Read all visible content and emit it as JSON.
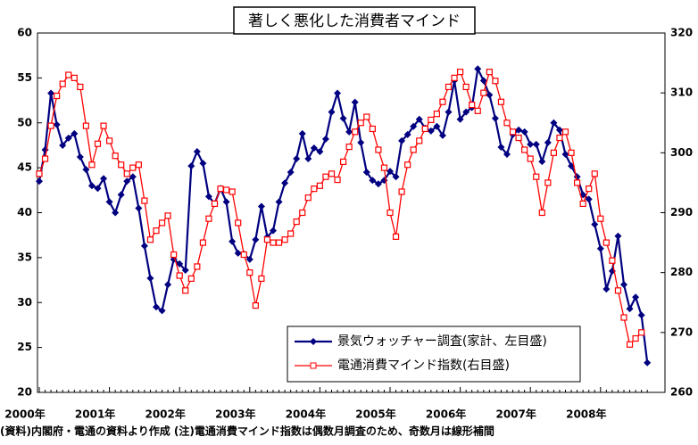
{
  "chart_data": {
    "type": "line",
    "title": "著しく悪化した消費者マインド",
    "note": "(資料)内閣府・電通の資料より作成 (注)電通消費マインド指数は偶数月調査のため、奇数月は線形補間",
    "categories": [
      "2000年",
      null,
      null,
      null,
      null,
      null,
      null,
      null,
      null,
      null,
      null,
      null,
      "2001年",
      null,
      null,
      null,
      null,
      null,
      null,
      null,
      null,
      null,
      null,
      null,
      "2002年",
      null,
      null,
      null,
      null,
      null,
      null,
      null,
      null,
      null,
      null,
      null,
      "2003年",
      null,
      null,
      null,
      null,
      null,
      null,
      null,
      null,
      null,
      null,
      null,
      "2004年",
      null,
      null,
      null,
      null,
      null,
      null,
      null,
      null,
      null,
      null,
      null,
      "2005年",
      null,
      null,
      null,
      null,
      null,
      null,
      null,
      null,
      null,
      null,
      null,
      "2006年",
      null,
      null,
      null,
      null,
      null,
      null,
      null,
      null,
      null,
      null,
      null,
      "2007年",
      null,
      null,
      null,
      null,
      null,
      null,
      null,
      null,
      null,
      null,
      null,
      "2008年",
      null,
      null,
      null,
      null,
      null,
      null,
      null,
      null
    ],
    "series": [
      {
        "name": "景気ウォッチャー調査(家計、左目盛)",
        "color": "#000080",
        "marker": "diamond",
        "values": [
          43.5,
          47,
          53.3,
          49.8,
          47.5,
          48.3,
          48.8,
          46.2,
          44.8,
          43.0,
          42.7,
          43.8,
          41.2,
          40.0,
          42.0,
          43.5,
          44.0,
          40.5,
          36.3,
          32.7,
          29.5,
          29.1,
          32.0,
          34.8,
          34.3,
          33.6,
          45.2,
          46.8,
          45.5,
          41.8,
          41.0,
          42.7,
          41.2,
          36.8,
          35.5,
          35.4,
          34.8,
          37.0,
          40.7,
          37.3,
          38.0,
          41.2,
          43.3,
          44.5,
          46.0,
          48.8,
          46.0,
          47.2,
          46.8,
          48.2,
          51.2,
          53.3,
          50.5,
          49.0,
          52.3,
          47.8,
          44.5,
          43.6,
          43.2,
          43.6,
          44.6,
          44.0,
          48.0,
          48.7,
          49.6,
          50.4,
          49.4,
          49.1,
          49.6,
          48.6,
          51.2,
          54.7,
          50.4,
          51.2,
          51.7,
          56.0,
          54.7,
          53.1,
          50.5,
          47.3,
          46.5,
          48.7,
          49.2,
          49.0,
          47.6,
          47.6,
          45.7,
          47.8,
          50.0,
          49.2,
          46.5,
          45.2,
          44.0,
          42.0,
          41.5,
          38.7,
          36.0,
          31.5,
          33.5,
          37.4,
          32.0,
          29.3,
          30.6,
          28.6,
          23.3
        ]
      },
      {
        "name": "電通消費マインド指数(右目盛)",
        "color": "#ff0000",
        "marker": "square",
        "axis": "y2",
        "values": [
          296.5,
          299,
          304.5,
          309.5,
          311.5,
          313,
          312.5,
          311,
          304.5,
          298,
          301.5,
          304.5,
          302.0,
          299.5,
          298.0,
          296.5,
          297.5,
          298.0,
          292.0,
          285.5,
          287.0,
          288.3,
          289.5,
          283.0,
          279.5,
          277.0,
          279.0,
          281.0,
          285.0,
          289.0,
          291.5,
          294.0,
          293.8,
          293.5,
          288.3,
          283.0,
          280.0,
          274.5,
          279.0,
          285.5,
          285.0,
          285.0,
          285.5,
          286.5,
          288.5,
          290.0,
          292.5,
          294.0,
          294.5,
          296.0,
          296.5,
          295.5,
          298.5,
          301.0,
          303.5,
          305.0,
          306.0,
          304.0,
          300.5,
          297.5,
          290.0,
          286.0,
          293.5,
          298.0,
          300.5,
          302.0,
          304.0,
          305.5,
          306.5,
          308.5,
          311.0,
          312.5,
          313.5,
          311.0,
          308.0,
          307.0,
          310.0,
          313.5,
          312.0,
          308.5,
          305.0,
          303.5,
          302.5,
          300.5,
          299.0,
          296.0,
          290.0,
          295.0,
          300.0,
          302.5,
          303.5,
          300.0,
          295.0,
          291.5,
          294.0,
          296.5,
          289.0,
          285.0,
          282.0,
          277.0,
          272.5,
          268.0,
          269.0,
          270.0,
          null
        ]
      }
    ],
    "ylim": [
      20,
      60
    ],
    "yticks": [
      20,
      25,
      30,
      35,
      40,
      45,
      50,
      55,
      60
    ],
    "y2lim": [
      260,
      320
    ],
    "y2ticks": [
      260,
      270,
      280,
      290,
      300,
      310,
      320
    ],
    "grid": false,
    "legend": "lower right"
  }
}
